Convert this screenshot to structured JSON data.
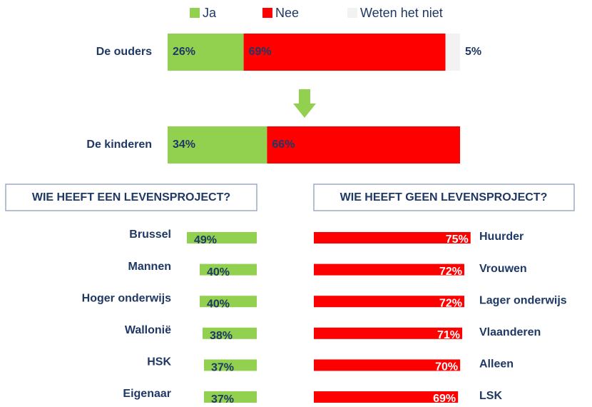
{
  "chart_data": [
    {
      "type": "stacked_bar",
      "categories": [
        "De ouders",
        "De kinderen"
      ],
      "series": [
        {
          "name": "Ja",
          "color": "#92d050",
          "values": [
            26,
            34
          ],
          "value_labels": [
            "26%",
            "34%"
          ]
        },
        {
          "name": "Nee",
          "color": "#ff0000",
          "values": [
            69,
            66
          ],
          "value_labels": [
            "69%",
            "66%"
          ]
        },
        {
          "name": "Weten het niet",
          "color": "#f2f2f2",
          "values": [
            5,
            null
          ],
          "value_labels": [
            "5%",
            null
          ]
        }
      ]
    },
    {
      "type": "bar",
      "side": "left",
      "title": "WIE HEEFT EEN LEVENSPROJECT?",
      "color": "#92d050",
      "categories": [
        "Brussel",
        "Mannen",
        "Hoger onderwijs",
        "Wallonië",
        "HSK",
        "Eigenaar"
      ],
      "values": [
        49,
        40,
        40,
        38,
        37,
        37
      ],
      "value_labels": [
        "49%",
        "40%",
        "40%",
        "38%",
        "37%",
        "37%"
      ]
    },
    {
      "type": "bar",
      "side": "right",
      "title": "WIE HEEFT GEEN LEVENSPROJECT?",
      "color": "#ff0000",
      "categories": [
        "Huurder",
        "Vrouwen",
        "Lager onderwijs",
        "Vlaanderen",
        "Alleen",
        "LSK"
      ],
      "values": [
        75,
        72,
        72,
        71,
        70,
        69
      ],
      "value_labels": [
        "75%",
        "72%",
        "72%",
        "71%",
        "70%",
        "69%"
      ]
    }
  ]
}
